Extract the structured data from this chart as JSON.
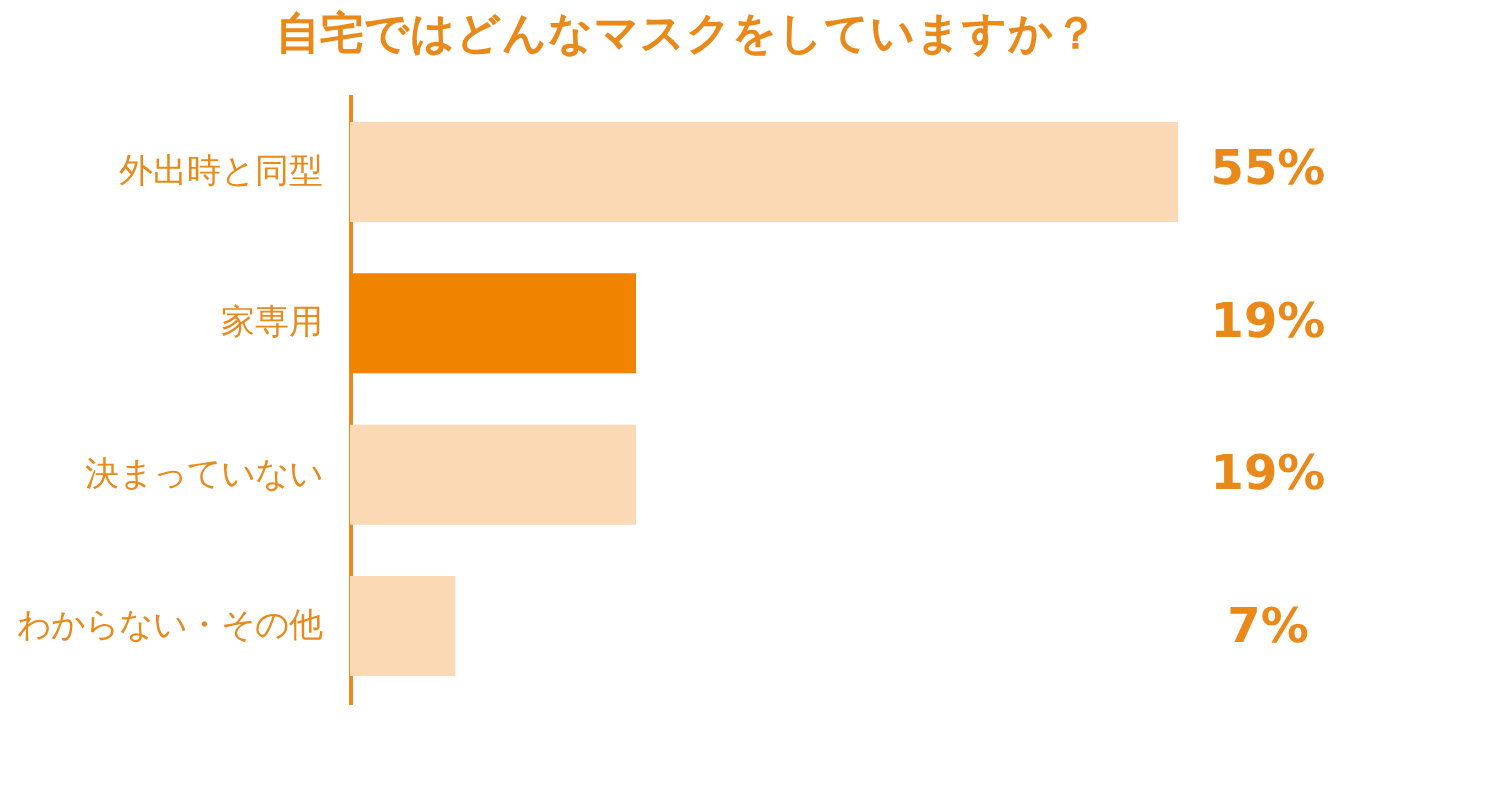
{
  "chart_data": {
    "type": "bar",
    "orientation": "horizontal",
    "title": "自宅ではどんなマスクをしていますか？",
    "categories": [
      "外出時と同型",
      "家専用",
      "決まっていない",
      "わからない・その他"
    ],
    "values": [
      55,
      19,
      19,
      7
    ],
    "colors": [
      "#fad9b4",
      "#f08300",
      "#fad9b4",
      "#fad9b4"
    ],
    "value_labels": [
      "55%",
      "19%",
      "19%",
      "7%"
    ]
  }
}
